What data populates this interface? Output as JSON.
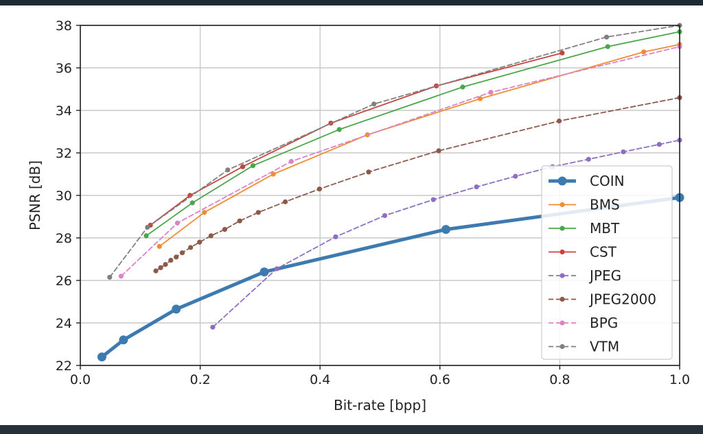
{
  "chart_data": {
    "type": "line",
    "title": "",
    "xlabel": "Bit-rate [bpp]",
    "ylabel": "PSNR [dB]",
    "xlim": [
      0.0,
      1.0
    ],
    "ylim": [
      22,
      38
    ],
    "grid": true,
    "legend_position": "right",
    "x_ticks": [
      0.0,
      0.2,
      0.4,
      0.6,
      0.8,
      1.0
    ],
    "x_tick_labels": [
      "0.0",
      "0.2",
      "0.4",
      "0.6",
      "0.8",
      "1.0"
    ],
    "y_ticks": [
      22,
      24,
      26,
      28,
      30,
      32,
      34,
      36,
      38
    ],
    "y_tick_labels": [
      "22",
      "24",
      "26",
      "28",
      "30",
      "32",
      "34",
      "36",
      "38"
    ],
    "series": [
      {
        "name": "COIN",
        "color": "#3d7ab0",
        "dashed": false,
        "bold": true,
        "x": [
          0.036,
          0.072,
          0.16,
          0.307,
          0.61,
          1.0
        ],
        "y": [
          22.4,
          23.2,
          24.65,
          26.4,
          28.4,
          29.9
        ]
      },
      {
        "name": "BMS",
        "color": "#f08d32",
        "dashed": false,
        "bold": false,
        "x": [
          0.132,
          0.207,
          0.322,
          0.479,
          0.667,
          0.94,
          1.0
        ],
        "y": [
          27.6,
          29.2,
          31.0,
          32.85,
          34.55,
          36.75,
          37.1
        ]
      },
      {
        "name": "MBT",
        "color": "#4aa64a",
        "dashed": false,
        "bold": false,
        "x": [
          0.11,
          0.187,
          0.288,
          0.432,
          0.638,
          0.88,
          1.0
        ],
        "y": [
          28.1,
          29.65,
          31.4,
          33.1,
          35.1,
          37.0,
          37.7
        ]
      },
      {
        "name": "CST",
        "color": "#c7443d",
        "dashed": false,
        "bold": false,
        "x": [
          0.117,
          0.183,
          0.271,
          0.418,
          0.594,
          0.804
        ],
        "y": [
          28.6,
          30.0,
          31.35,
          33.4,
          35.15,
          36.7
        ]
      },
      {
        "name": "JPEG",
        "color": "#8d6fc1",
        "dashed": true,
        "bold": false,
        "x": [
          0.221,
          0.328,
          0.426,
          0.508,
          0.589,
          0.661,
          0.726,
          0.788,
          0.848,
          0.906,
          0.966,
          1.0
        ],
        "y": [
          23.8,
          26.55,
          28.05,
          29.05,
          29.8,
          30.4,
          30.9,
          31.35,
          31.7,
          32.05,
          32.4,
          32.6
        ]
      },
      {
        "name": "JPEG2000",
        "color": "#8c5a4b",
        "dashed": true,
        "bold": false,
        "x": [
          0.126,
          0.134,
          0.142,
          0.151,
          0.16,
          0.17,
          0.184,
          0.199,
          0.218,
          0.241,
          0.266,
          0.297,
          0.342,
          0.399,
          0.481,
          0.598,
          0.799,
          1.0
        ],
        "y": [
          26.45,
          26.6,
          26.75,
          26.95,
          27.1,
          27.3,
          27.55,
          27.8,
          28.1,
          28.4,
          28.8,
          29.2,
          29.7,
          30.3,
          31.1,
          32.1,
          33.5,
          34.6
        ]
      },
      {
        "name": "BPG",
        "color": "#de82c8",
        "dashed": true,
        "bold": false,
        "x": [
          0.068,
          0.162,
          0.352,
          0.685,
          1.0
        ],
        "y": [
          26.2,
          28.7,
          31.6,
          34.85,
          37.0
        ]
      },
      {
        "name": "VTM",
        "color": "#808080",
        "dashed": true,
        "bold": false,
        "x": [
          0.049,
          0.112,
          0.246,
          0.49,
          0.878,
          1.0
        ],
        "y": [
          26.15,
          28.5,
          31.2,
          34.3,
          37.45,
          38.0
        ]
      }
    ]
  }
}
